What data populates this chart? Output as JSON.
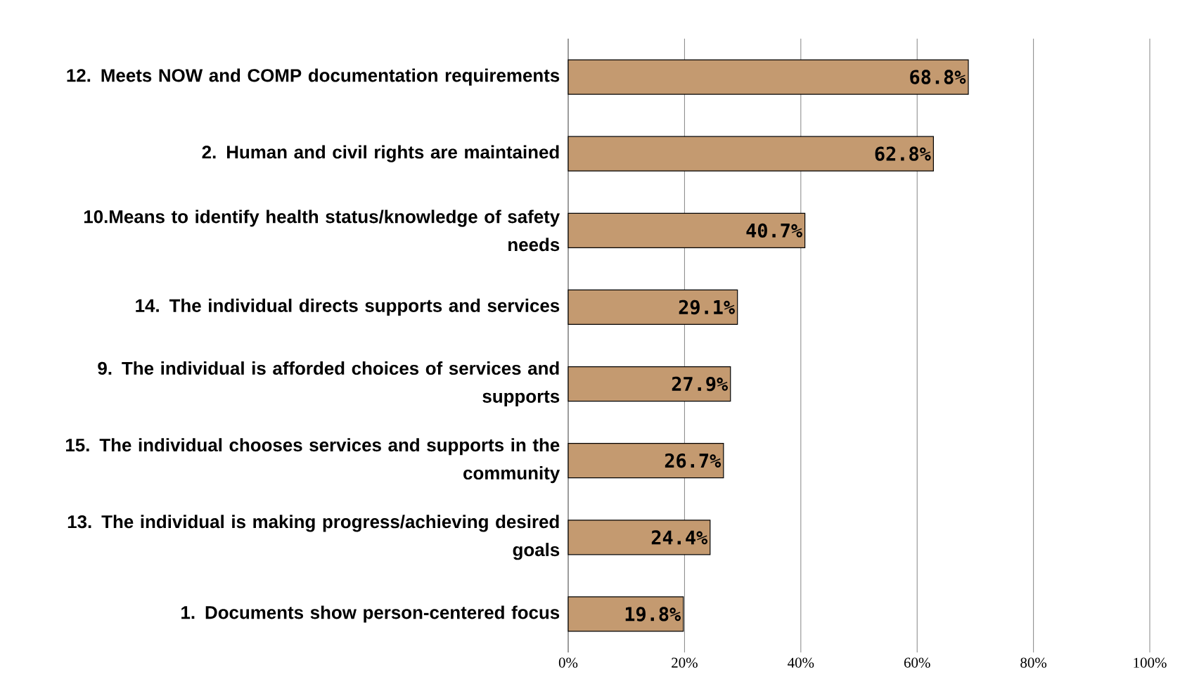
{
  "chart_data": {
    "type": "bar",
    "orientation": "horizontal",
    "categories": [
      "12. Meets NOW and COMP documentation requirements",
      "2. Human and civil rights are maintained",
      "10.Means to identify health status/knowledge of safety needs",
      "14. The individual directs supports and services",
      "9. The individual is afforded choices of services and supports",
      "15. The individual chooses services and supports in the community",
      "13. The individual is making progress/achieving desired goals",
      "1. Documents show person-centered focus"
    ],
    "values": [
      68.8,
      62.8,
      40.7,
      29.1,
      27.9,
      26.7,
      24.4,
      19.8
    ],
    "value_labels": [
      "68.8%",
      "62.8%",
      "40.7%",
      "29.1%",
      "27.9%",
      "26.7%",
      "24.4%",
      "19.8%"
    ],
    "color": "#c49a70",
    "xlim": [
      0,
      100
    ],
    "xticks": [
      {
        "value": 0,
        "label": "0%"
      },
      {
        "value": 20,
        "label": "20%"
      },
      {
        "value": 40,
        "label": "40%"
      },
      {
        "value": 60,
        "label": "60%"
      },
      {
        "value": 80,
        "label": "80%"
      },
      {
        "value": 100,
        "label": "100%"
      }
    ],
    "grid": "x"
  }
}
